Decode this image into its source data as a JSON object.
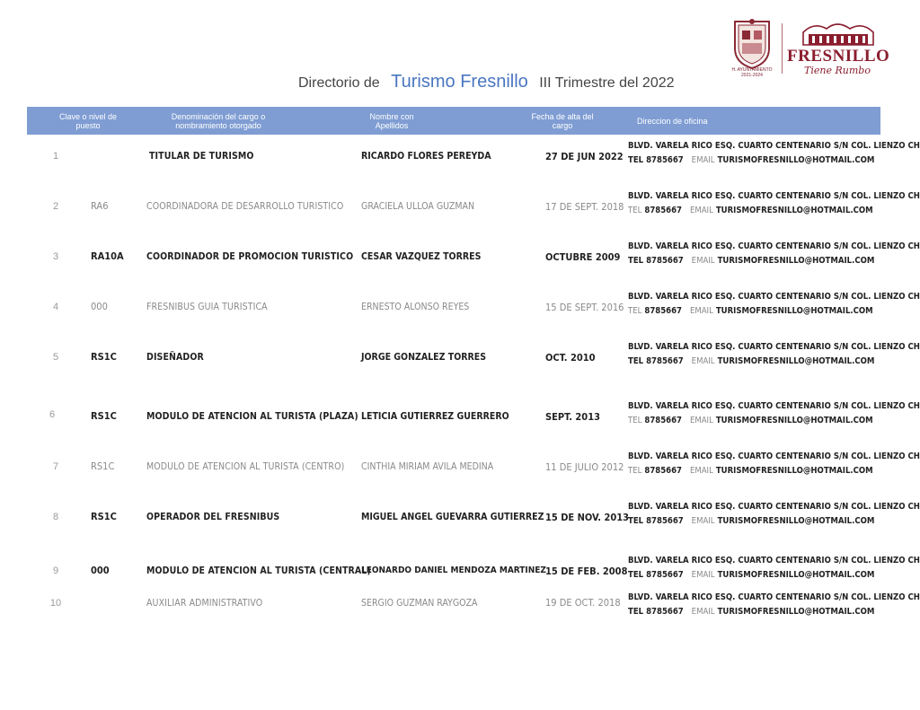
{
  "title": {
    "prefix": "Directorio de",
    "main": "Turismo Fresnillo",
    "suffix": "III  Trimestre del 2022"
  },
  "logo": {
    "seal_text": "H. AYUNTAMIENTO 2021-2024",
    "brand_name": "FRESNILLO",
    "slogan": "Tiene Rumbo",
    "colors": {
      "brand": "#8a1e2e"
    }
  },
  "header": {
    "clave": "Clave o nivel de puesto",
    "cargo": "Denominación del cargo o nombramiento otorgado",
    "nombre": "Nombre con Apellidos",
    "fecha": "Fecha de alta del cargo",
    "direccion": "Direccion de oficina",
    "color": "#7f9dd3"
  },
  "rows": [
    {
      "num": "1",
      "clave": "",
      "cargo": "TITULAR DE TURISMO",
      "nombre": "RICARDO FLORES PEREYDA",
      "fecha": "27 DE JUN 2022",
      "dir1": "BLVD. VARELA RICO ESQ. CUARTO CENTENARIO S/N COL. LIENZO CHARRO",
      "tel_label": "TEL",
      "tel": "8785667",
      "email_label": "EMAIL",
      "email": "TURISMOFRESNILLO@HOTMAIL.COM"
    },
    {
      "num": "2",
      "clave": "RA6",
      "cargo": "COORDINADORA DE DESARROLLO TURISTICO",
      "nombre": "GRACIELA ULLOA GUZMAN",
      "fecha": "17 DE SEPT. 2018",
      "dir1": "BLVD. VARELA RICO ESQ. CUARTO CENTENARIO S/N COL. LIENZO CHARRO",
      "tel_label": "TEL",
      "tel": "8785667",
      "email_label": "EMAIL",
      "email": "TURISMOFRESNILLO@HOTMAIL.COM"
    },
    {
      "num": "3",
      "clave": "RA10A",
      "cargo": "COORDINADOR DE PROMOCION TURISTICO",
      "nombre": "CESAR VAZQUEZ TORRES",
      "fecha": "OCTUBRE 2009",
      "dir1": "BLVD. VARELA RICO ESQ. CUARTO CENTENARIO S/N COL. LIENZO CHARRO",
      "tel_label": "TEL",
      "tel": "8785667",
      "email_label": "EMAIL",
      "email": "TURISMOFRESNILLO@HOTMAIL.COM"
    },
    {
      "num": "4",
      "clave": "000",
      "cargo": "FRESNIBUS GUIA TURISTICA",
      "nombre": "ERNESTO ALONSO REYES",
      "fecha": "15 DE SEPT. 2016",
      "dir1": "BLVD. VARELA RICO ESQ. CUARTO CENTENARIO S/N COL. LIENZO CHARRO",
      "tel_label": "TEL",
      "tel": "8785667",
      "email_label": "EMAIL",
      "email": "TURISMOFRESNILLO@HOTMAIL.COM"
    },
    {
      "num": "5",
      "clave": "RS1C",
      "cargo": "DISEÑADOR",
      "nombre": "JORGE GONZALEZ TORRES",
      "fecha": "OCT. 2010",
      "dir1": "BLVD. VARELA RICO ESQ. CUARTO CENTENARIO S/N COL. LIENZO CHARRO",
      "tel_label": "TEL",
      "tel": "8785667",
      "email_label": "EMAIL",
      "email": "TURISMOFRESNILLO@HOTMAIL.COM"
    },
    {
      "num": "6",
      "clave": "RS1C",
      "cargo": "MODULO DE ATENCION AL TURISTA  (PLAZA)",
      "nombre": "LETICIA GUTIERREZ GUERRERO",
      "fecha": "SEPT. 2013",
      "dir1": "BLVD. VARELA RICO ESQ. CUARTO CENTENARIO S/N COL. LIENZO CHARRO",
      "tel_label": "TEL",
      "tel": "8785667",
      "email_label": "EMAIL",
      "email": "TURISMOFRESNILLO@HOTMAIL.COM"
    },
    {
      "num": "7",
      "clave": "RS1C",
      "cargo": "MODULO DE ATENCION AL TURISTA  (CENTRO)",
      "nombre": "CINTHIA MIRIAM AVILA MEDINA",
      "fecha": "11 DE JULIO 2012",
      "dir1": "BLVD. VARELA RICO ESQ. CUARTO CENTENARIO S/N COL. LIENZO CHARRO",
      "tel_label": "TEL",
      "tel": "8785667",
      "email_label": "EMAIL",
      "email": "TURISMOFRESNILLO@HOTMAIL.COM"
    },
    {
      "num": "8",
      "clave": "RS1C",
      "cargo": "OPERADOR DEL FRESNIBUS",
      "nombre": "MIGUEL ANGEL GUEVARRA GUTIERREZ",
      "fecha": "15 DE NOV. 2013",
      "dir1": "BLVD. VARELA RICO ESQ. CUARTO CENTENARIO S/N COL. LIENZO CHARRO",
      "tel_label": "TEL",
      "tel": "8785667",
      "email_label": "EMAIL",
      "email": "TURISMOFRESNILLO@HOTMAIL.COM"
    },
    {
      "num": "9",
      "clave": "000",
      "cargo": "MODULO DE ATENCION AL TURISTA  (CENTRAL)",
      "nombre": "LEONARDO DANIEL MENDOZA MARTINEZ",
      "fecha": "15 DE FEB. 2008",
      "dir1": "BLVD. VARELA RICO ESQ. CUARTO CENTENARIO S/N COL. LIENZO CHARRO",
      "tel_label": "TEL",
      "tel": "8785667",
      "email_label": "EMAIL",
      "email": "TURISMOFRESNILLO@HOTMAIL.COM"
    },
    {
      "num": "10",
      "clave": "",
      "cargo": "AUXILIAR ADMINISTRATIVO",
      "nombre": "SERGIO GUZMAN RAYGOZA",
      "fecha": "19 DE OCT. 2018",
      "dir1": "BLVD. VARELA RICO ESQ. CUARTO CENTENARIO S/N COL. LIENZO CHARRO",
      "tel_label": "TEL",
      "tel": "8785667",
      "email_label": "EMAIL",
      "email": "TURISMOFRESNILLO@HOTMAIL.COM"
    }
  ]
}
